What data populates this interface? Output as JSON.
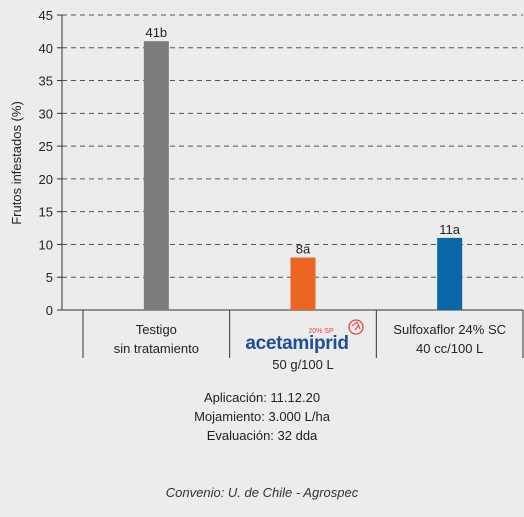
{
  "chart_data": {
    "type": "bar",
    "ylabel": "Frutos infestados (%)",
    "ylim": [
      0,
      45
    ],
    "yticks": [
      0,
      5,
      10,
      15,
      20,
      25,
      30,
      35,
      40,
      45
    ],
    "grid": true,
    "categories": [
      {
        "line1": "Testigo",
        "line2": "sin tratamiento"
      },
      {
        "brand": "acetamiprid",
        "badge": "20% SP",
        "line2": "50 g/100 L"
      },
      {
        "line1": "Sulfoxaflor 24% SC",
        "line2": "40 cc/100 L"
      }
    ],
    "values": [
      41,
      8,
      11
    ],
    "data_labels": [
      "41b",
      "8a",
      "11a"
    ],
    "colors": [
      "#7b7b7c",
      "#ec6523",
      "#0a68a6"
    ]
  },
  "notes": {
    "application": "Aplicación: 11.12.20",
    "wetting": "Mojamiento: 3.000 L/ha",
    "evaluation": "Evaluación: 32 dda"
  },
  "credit": "Convenio: U. de Chile - Agrospec",
  "brand_colors": {
    "text": "#1e4f95",
    "badge": "#e8463a"
  }
}
